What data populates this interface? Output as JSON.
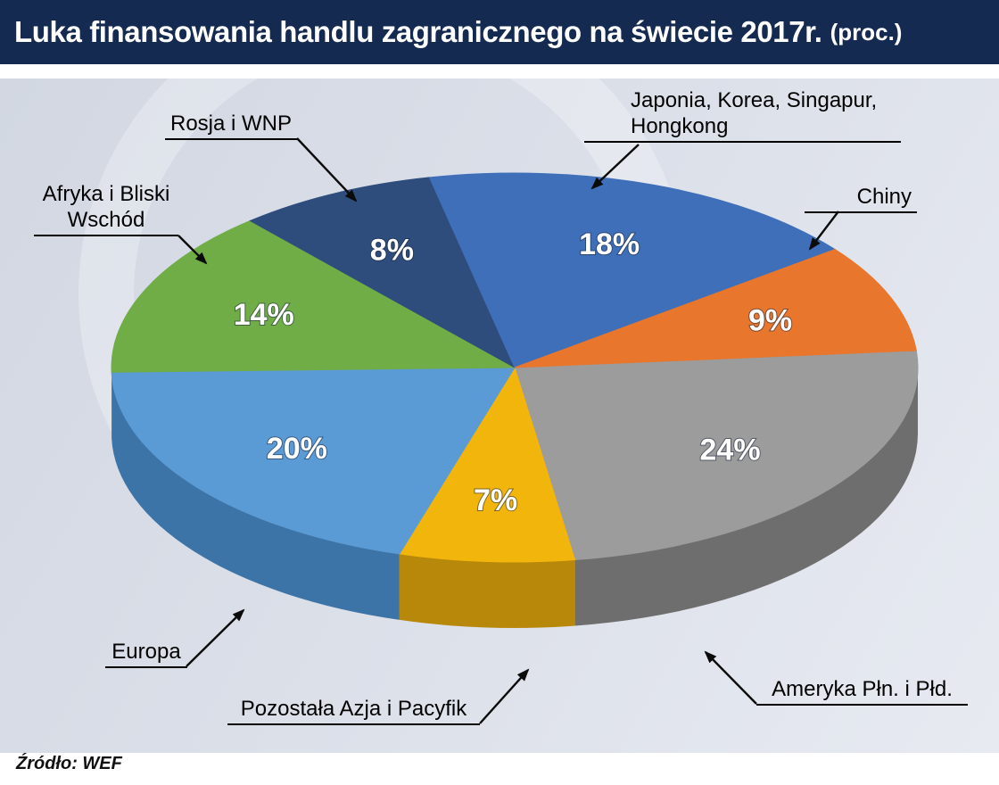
{
  "header": {
    "title": "Luka finansowania handlu zagranicznego na świecie 2017r.",
    "suffix": "(proc.)"
  },
  "footer": {
    "source": "Źródło: WEF"
  },
  "chart_data": {
    "type": "pie",
    "title": "Luka finansowania handlu zagranicznego na świecie 2017r. (proc.)",
    "unit": "percent",
    "style": "3d-pie",
    "start_angle_deg": -5,
    "slices": [
      {
        "label": "Ameryka Płn. i Płd.",
        "value": 24,
        "color": "#9C9C9C",
        "side_color": "#6E6E6E"
      },
      {
        "label": "Pozostała Azja i Pacyfik",
        "value": 7,
        "color": "#F2B50C",
        "side_color": "#B8880A"
      },
      {
        "label": "Europa",
        "value": 20,
        "color": "#5B9BD5",
        "side_color": "#3D74A8"
      },
      {
        "label": "Afryka i Bliski Wschód",
        "value": 14,
        "color": "#70AD47",
        "side_color": "#4F7D32"
      },
      {
        "label": "Rosja i WNP",
        "value": 8,
        "color": "#2E4D7C",
        "side_color": "#1E3657"
      },
      {
        "label": "Japonia, Korea, Singapur, Hongkong",
        "value": 18,
        "color": "#3E6FB8",
        "side_color": "#2A5089"
      },
      {
        "label": "Chiny",
        "value": 9,
        "color": "#E8762C",
        "side_color": "#AC5520"
      }
    ]
  }
}
